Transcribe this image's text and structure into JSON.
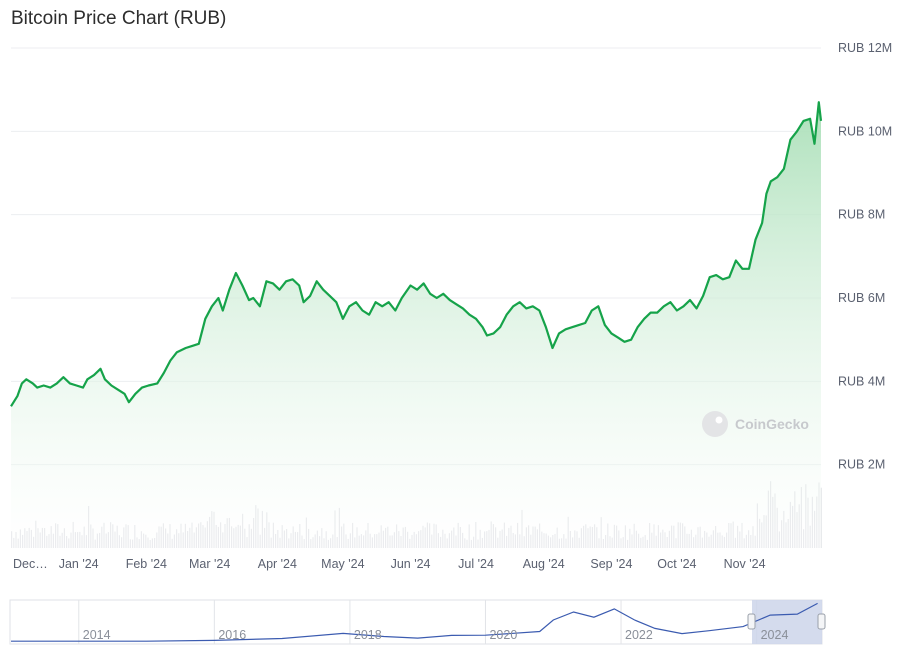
{
  "title": "Bitcoin Price Chart (RUB)",
  "watermark": "CoinGecko",
  "colors": {
    "line": "#16a34a",
    "fill_top": "#bfe8c8",
    "volume": "#e3e4e8",
    "navigator_line": "#3b5bb0",
    "navigator_window": "#ccd5ea",
    "grid": "#eceef1"
  },
  "chart_data": {
    "type": "area",
    "title": "Bitcoin Price Chart (RUB)",
    "ylim": [
      0,
      12000000
    ],
    "yticks": [
      {
        "value": 2000000,
        "label": "RUB 2M"
      },
      {
        "value": 4000000,
        "label": "RUB 4M"
      },
      {
        "value": 6000000,
        "label": "RUB 6M"
      },
      {
        "value": 8000000,
        "label": "RUB 8M"
      },
      {
        "value": 10000000,
        "label": "RUB 10M"
      },
      {
        "value": 12000000,
        "label": "RUB 12M"
      }
    ],
    "x_start": "2023-12-01",
    "x_end": "2024-12-06",
    "xticks": [
      {
        "date": "2023-12-01",
        "label": "Dec…"
      },
      {
        "date": "2024-01-01",
        "label": "Jan '24"
      },
      {
        "date": "2024-02-01",
        "label": "Feb '24"
      },
      {
        "date": "2024-03-01",
        "label": "Mar '24"
      },
      {
        "date": "2024-04-01",
        "label": "Apr '24"
      },
      {
        "date": "2024-05-01",
        "label": "May '24"
      },
      {
        "date": "2024-06-01",
        "label": "Jun '24"
      },
      {
        "date": "2024-07-01",
        "label": "Jul '24"
      },
      {
        "date": "2024-08-01",
        "label": "Aug '24"
      },
      {
        "date": "2024-09-01",
        "label": "Sep '24"
      },
      {
        "date": "2024-10-01",
        "label": "Oct '24"
      },
      {
        "date": "2024-11-01",
        "label": "Nov '24"
      }
    ],
    "series": [
      {
        "points": [
          [
            "2023-12-01",
            3400000
          ],
          [
            "2023-12-04",
            3650000
          ],
          [
            "2023-12-06",
            3950000
          ],
          [
            "2023-12-08",
            4050000
          ],
          [
            "2023-12-11",
            3950000
          ],
          [
            "2023-12-13",
            3850000
          ],
          [
            "2023-12-16",
            3900000
          ],
          [
            "2023-12-19",
            3850000
          ],
          [
            "2023-12-22",
            3950000
          ],
          [
            "2023-12-25",
            4100000
          ],
          [
            "2023-12-28",
            3950000
          ],
          [
            "2023-12-31",
            3900000
          ],
          [
            "2024-01-03",
            3850000
          ],
          [
            "2024-01-05",
            4050000
          ],
          [
            "2024-01-08",
            4150000
          ],
          [
            "2024-01-11",
            4300000
          ],
          [
            "2024-01-13",
            4050000
          ],
          [
            "2024-01-16",
            3900000
          ],
          [
            "2024-01-19",
            3800000
          ],
          [
            "2024-01-22",
            3700000
          ],
          [
            "2024-01-24",
            3500000
          ],
          [
            "2024-01-27",
            3700000
          ],
          [
            "2024-01-30",
            3850000
          ],
          [
            "2024-02-02",
            3900000
          ],
          [
            "2024-02-06",
            3950000
          ],
          [
            "2024-02-09",
            4200000
          ],
          [
            "2024-02-12",
            4500000
          ],
          [
            "2024-02-15",
            4700000
          ],
          [
            "2024-02-19",
            4800000
          ],
          [
            "2024-02-22",
            4850000
          ],
          [
            "2024-02-25",
            4900000
          ],
          [
            "2024-02-28",
            5500000
          ],
          [
            "2024-03-02",
            5800000
          ],
          [
            "2024-03-05",
            6000000
          ],
          [
            "2024-03-07",
            5700000
          ],
          [
            "2024-03-10",
            6200000
          ],
          [
            "2024-03-13",
            6600000
          ],
          [
            "2024-03-16",
            6300000
          ],
          [
            "2024-03-19",
            5950000
          ],
          [
            "2024-03-21",
            6000000
          ],
          [
            "2024-03-24",
            5800000
          ],
          [
            "2024-03-27",
            6400000
          ],
          [
            "2024-03-30",
            6350000
          ],
          [
            "2024-04-02",
            6200000
          ],
          [
            "2024-04-05",
            6400000
          ],
          [
            "2024-04-08",
            6450000
          ],
          [
            "2024-04-11",
            6300000
          ],
          [
            "2024-04-13",
            5900000
          ],
          [
            "2024-04-16",
            6050000
          ],
          [
            "2024-04-19",
            6400000
          ],
          [
            "2024-04-22",
            6200000
          ],
          [
            "2024-04-25",
            6050000
          ],
          [
            "2024-04-28",
            5900000
          ],
          [
            "2024-05-01",
            5500000
          ],
          [
            "2024-05-04",
            5800000
          ],
          [
            "2024-05-07",
            5900000
          ],
          [
            "2024-05-10",
            5700000
          ],
          [
            "2024-05-13",
            5600000
          ],
          [
            "2024-05-16",
            5900000
          ],
          [
            "2024-05-19",
            5800000
          ],
          [
            "2024-05-22",
            5900000
          ],
          [
            "2024-05-25",
            5700000
          ],
          [
            "2024-05-28",
            6000000
          ],
          [
            "2024-06-01",
            6300000
          ],
          [
            "2024-06-04",
            6200000
          ],
          [
            "2024-06-07",
            6350000
          ],
          [
            "2024-06-10",
            6100000
          ],
          [
            "2024-06-13",
            6000000
          ],
          [
            "2024-06-16",
            6100000
          ],
          [
            "2024-06-19",
            5950000
          ],
          [
            "2024-06-22",
            5850000
          ],
          [
            "2024-06-25",
            5750000
          ],
          [
            "2024-06-28",
            5600000
          ],
          [
            "2024-07-01",
            5500000
          ],
          [
            "2024-07-04",
            5300000
          ],
          [
            "2024-07-06",
            5100000
          ],
          [
            "2024-07-09",
            5150000
          ],
          [
            "2024-07-12",
            5300000
          ],
          [
            "2024-07-15",
            5600000
          ],
          [
            "2024-07-18",
            5800000
          ],
          [
            "2024-07-21",
            5900000
          ],
          [
            "2024-07-24",
            5750000
          ],
          [
            "2024-07-27",
            5800000
          ],
          [
            "2024-07-30",
            5700000
          ],
          [
            "2024-08-02",
            5300000
          ],
          [
            "2024-08-05",
            4800000
          ],
          [
            "2024-08-08",
            5150000
          ],
          [
            "2024-08-11",
            5250000
          ],
          [
            "2024-08-14",
            5300000
          ],
          [
            "2024-08-17",
            5350000
          ],
          [
            "2024-08-20",
            5400000
          ],
          [
            "2024-08-23",
            5700000
          ],
          [
            "2024-08-26",
            5800000
          ],
          [
            "2024-08-29",
            5350000
          ],
          [
            "2024-09-01",
            5150000
          ],
          [
            "2024-09-04",
            5050000
          ],
          [
            "2024-09-07",
            4950000
          ],
          [
            "2024-09-10",
            5000000
          ],
          [
            "2024-09-13",
            5300000
          ],
          [
            "2024-09-16",
            5500000
          ],
          [
            "2024-09-19",
            5650000
          ],
          [
            "2024-09-22",
            5650000
          ],
          [
            "2024-09-25",
            5800000
          ],
          [
            "2024-09-28",
            5900000
          ],
          [
            "2024-10-01",
            5700000
          ],
          [
            "2024-10-04",
            5800000
          ],
          [
            "2024-10-07",
            5950000
          ],
          [
            "2024-10-10",
            5750000
          ],
          [
            "2024-10-13",
            6050000
          ],
          [
            "2024-10-16",
            6500000
          ],
          [
            "2024-10-19",
            6550000
          ],
          [
            "2024-10-22",
            6450000
          ],
          [
            "2024-10-25",
            6500000
          ],
          [
            "2024-10-28",
            6900000
          ],
          [
            "2024-10-31",
            6700000
          ],
          [
            "2024-11-03",
            6700000
          ],
          [
            "2024-11-06",
            7400000
          ],
          [
            "2024-11-09",
            7800000
          ],
          [
            "2024-11-11",
            8500000
          ],
          [
            "2024-11-13",
            8800000
          ],
          [
            "2024-11-16",
            8900000
          ],
          [
            "2024-11-19",
            9100000
          ],
          [
            "2024-11-22",
            9800000
          ],
          [
            "2024-11-25",
            10000000
          ],
          [
            "2024-11-28",
            10250000
          ],
          [
            "2024-12-01",
            10300000
          ],
          [
            "2024-12-03",
            9700000
          ],
          [
            "2024-12-05",
            10700000
          ],
          [
            "2024-12-06",
            10250000
          ]
        ]
      }
    ]
  },
  "navigator": {
    "ticks": [
      {
        "label": "2014"
      },
      {
        "label": "2016"
      },
      {
        "label": "2018"
      },
      {
        "label": "2020"
      },
      {
        "label": "2022"
      },
      {
        "label": "2024"
      }
    ],
    "points": [
      [
        2013.0,
        0.02
      ],
      [
        2014.0,
        0.02
      ],
      [
        2015.0,
        0.02
      ],
      [
        2016.0,
        0.04
      ],
      [
        2017.0,
        0.09
      ],
      [
        2017.9,
        0.22
      ],
      [
        2018.5,
        0.14
      ],
      [
        2019.0,
        0.1
      ],
      [
        2019.5,
        0.17
      ],
      [
        2020.0,
        0.16
      ],
      [
        2020.8,
        0.28
      ],
      [
        2021.0,
        0.55
      ],
      [
        2021.3,
        0.78
      ],
      [
        2021.6,
        0.62
      ],
      [
        2021.9,
        0.86
      ],
      [
        2022.2,
        0.55
      ],
      [
        2022.5,
        0.36
      ],
      [
        2022.9,
        0.2
      ],
      [
        2023.3,
        0.3
      ],
      [
        2023.8,
        0.38
      ],
      [
        2024.2,
        0.7
      ],
      [
        2024.6,
        0.7
      ],
      [
        2024.9,
        1.0
      ]
    ]
  }
}
